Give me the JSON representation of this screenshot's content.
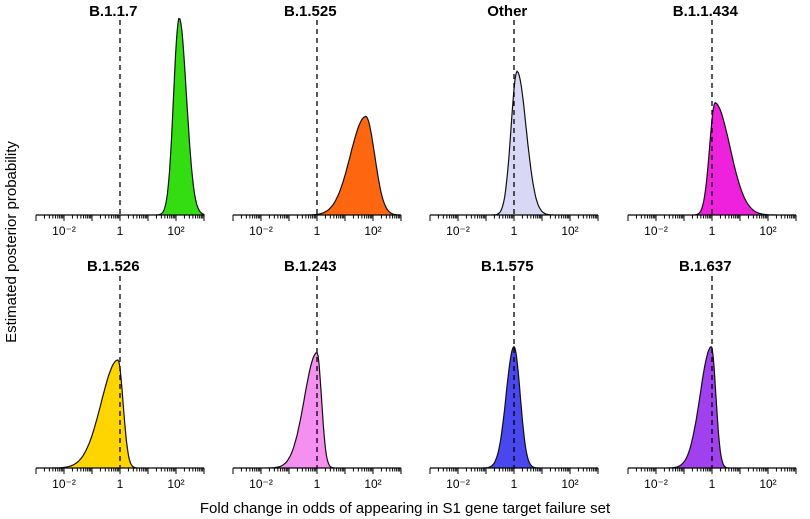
{
  "figure": {
    "xlabel": "Fold change in odds of appearing in S1 gene target failure set",
    "ylabel": "Estimated posterior probability"
  },
  "chart_data": {
    "type": "area",
    "x_scale": "log10",
    "xlim": [
      0.001,
      1000
    ],
    "x_tick_labels": [
      "10⁻²",
      "1",
      "10²"
    ],
    "reference_line_x": 1,
    "reference_line_style": "dashed",
    "y_axis_ticks_shown": false,
    "panels": [
      {
        "title": "B.1.1.7",
        "color": "#33dd11",
        "peak_x": 130,
        "peak_y": 1.0,
        "left_width_log10": 0.2,
        "right_width_log10": 0.26,
        "skew": 0
      },
      {
        "title": "B.1.525",
        "color": "#ff6610",
        "peak_x": 55,
        "peak_y": 0.5,
        "left_width_log10": 0.55,
        "right_width_log10": 0.32,
        "skew": 0
      },
      {
        "title": "Other",
        "color": "#d8d8f6",
        "peak_x": 1.3,
        "peak_y": 0.73,
        "left_width_log10": 0.22,
        "right_width_log10": 0.33,
        "skew": 0.6
      },
      {
        "title": "B.1.1.434",
        "color": "#ee22dd",
        "peak_x": 1.3,
        "peak_y": 0.57,
        "left_width_log10": 0.2,
        "right_width_log10": 0.55,
        "skew": 0.5
      },
      {
        "title": "B.1.526",
        "color": "#ffd500",
        "peak_x": 0.85,
        "peak_y": 0.73,
        "left_width_log10": 0.6,
        "right_width_log10": 0.18,
        "skew": 0
      },
      {
        "title": "B.1.243",
        "color": "#f590f0",
        "peak_x": 1.0,
        "peak_y": 0.78,
        "left_width_log10": 0.45,
        "right_width_log10": 0.16,
        "skew": 0
      },
      {
        "title": "B.1.575",
        "color": "#4848ee",
        "peak_x": 1.0,
        "peak_y": 0.82,
        "left_width_log10": 0.28,
        "right_width_log10": 0.22,
        "skew": 0
      },
      {
        "title": "B.1.637",
        "color": "#a040ee",
        "peak_x": 0.95,
        "peak_y": 0.82,
        "left_width_log10": 0.4,
        "right_width_log10": 0.16,
        "skew": 0
      }
    ]
  }
}
